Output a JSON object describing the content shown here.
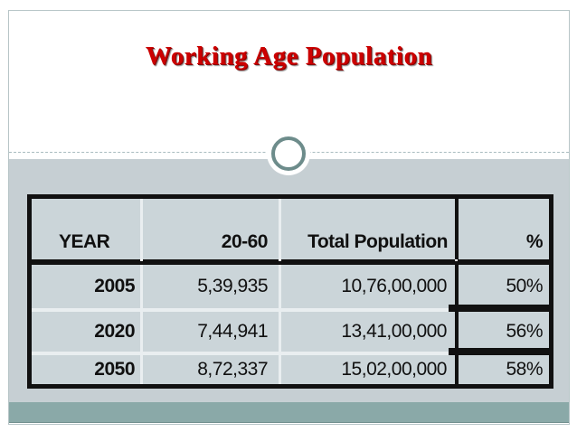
{
  "slide": {
    "title": "Working Age Population",
    "colors": {
      "title_text": "#cc0000",
      "content_background": "#c6cfd3",
      "table_cell_background": "#cbd5d9",
      "table_border": "#111111",
      "footer_band": "#8aa9a8",
      "divider_ring": "#6d8c8b"
    }
  },
  "table": {
    "headers": [
      "YEAR",
      "20-60",
      "Total Population",
      "%"
    ],
    "rows": [
      [
        "2005",
        "5,39,935",
        "10,76,00,000",
        "50%"
      ],
      [
        "2020",
        "7,44,941",
        "13,41,00,000",
        "56%"
      ],
      [
        "2050",
        "8,72,337",
        "15,02,00,000",
        "58%"
      ]
    ]
  },
  "chart_data": {
    "type": "table",
    "title": "Working Age Population",
    "columns": [
      "YEAR",
      "20-60",
      "Total Population",
      "%"
    ],
    "rows": [
      {
        "year": "2005",
        "age_20_60": "5,39,935",
        "total_population": "10,76,00,000",
        "percent": "50%"
      },
      {
        "year": "2020",
        "age_20_60": "7,44,941",
        "total_population": "13,41,00,000",
        "percent": "56%"
      },
      {
        "year": "2050",
        "age_20_60": "8,72,337",
        "total_population": "15,02,00,000",
        "percent": "58%"
      }
    ]
  }
}
